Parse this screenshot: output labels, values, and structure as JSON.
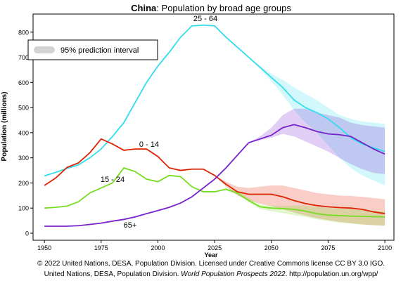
{
  "chart_data": {
    "type": "line",
    "title_country": "China",
    "title_rest": ": Population by broad age groups",
    "xlabel": "Year",
    "ylabel": "Population (millions)",
    "legend_label": "95% prediction interval",
    "legend_color": "#d3d3d3",
    "footer_line1": "© 2022 United Nations, DESA, Population Division. Licensed under Creative Commons license CC BY 3.0 IGO.",
    "footer_line2_start": "United Nations, DESA, Population Division. ",
    "footer_line2_italic": "World Population Prospects 2022",
    "footer_line2_end": ". http://population.un.org/wpp/",
    "xlim": [
      1945,
      2104
    ],
    "ylim": [
      -28,
      872
    ],
    "xticks": [
      1950,
      1975,
      2000,
      2025,
      2050,
      2075,
      2100
    ],
    "yticks": [
      0,
      100,
      200,
      300,
      400,
      500,
      600,
      700,
      800
    ],
    "x": [
      1950,
      1955,
      1960,
      1965,
      1970,
      1975,
      1980,
      1985,
      1990,
      1995,
      2000,
      2005,
      2010,
      2015,
      2020,
      2025,
      2030,
      2035,
      2040,
      2045,
      2050,
      2055,
      2060,
      2065,
      2070,
      2075,
      2080,
      2085,
      2090,
      2095,
      2100
    ],
    "series": [
      {
        "name": "25 - 64",
        "color": "#33dded",
        "values": [
          228,
          242,
          258,
          272,
          300,
          335,
          385,
          440,
          520,
          600,
          665,
          720,
          780,
          825,
          828,
          825,
          780,
          740,
          700,
          660,
          620,
          580,
          530,
          500,
          480,
          455,
          420,
          380,
          355,
          340,
          325
        ],
        "interval": {
          "x": [
            2025,
            2030,
            2035,
            2040,
            2045,
            2050,
            2055,
            2060,
            2065,
            2070,
            2075,
            2080,
            2085,
            2090,
            2095,
            2100
          ],
          "lower": [
            825,
            780,
            740,
            700,
            655,
            605,
            550,
            490,
            440,
            400,
            350,
            300,
            260,
            230,
            210,
            190
          ],
          "upper": [
            825,
            780,
            740,
            700,
            665,
            635,
            610,
            580,
            555,
            530,
            500,
            470,
            455,
            445,
            440,
            435
          ]
        }
      },
      {
        "name": "0 - 14",
        "color": "#dd2200",
        "values": [
          190,
          220,
          262,
          280,
          320,
          375,
          355,
          330,
          335,
          335,
          305,
          260,
          250,
          255,
          255,
          230,
          195,
          165,
          155,
          155,
          155,
          145,
          130,
          118,
          110,
          105,
          102,
          100,
          95,
          85,
          78
        ],
        "interval": {
          "x": [
            2025,
            2030,
            2035,
            2040,
            2045,
            2050,
            2055,
            2060,
            2065,
            2070,
            2075,
            2080,
            2085,
            2090,
            2095,
            2100
          ],
          "lower": [
            230,
            185,
            150,
            130,
            118,
            108,
            95,
            82,
            70,
            60,
            52,
            45,
            40,
            35,
            32,
            30
          ],
          "upper": [
            230,
            205,
            185,
            180,
            185,
            190,
            190,
            180,
            170,
            160,
            155,
            150,
            148,
            145,
            140,
            135
          ]
        }
      },
      {
        "name": "15 - 24",
        "color": "#77dd22",
        "values": [
          100,
          103,
          108,
          125,
          160,
          180,
          200,
          260,
          245,
          215,
          205,
          230,
          225,
          185,
          165,
          165,
          175,
          160,
          130,
          105,
          100,
          98,
          95,
          88,
          78,
          72,
          70,
          68,
          67,
          66,
          65
        ],
        "interval": {
          "x": [
            2025,
            2030,
            2035,
            2040,
            2045,
            2050,
            2055,
            2060,
            2065,
            2070,
            2075,
            2080,
            2085,
            2090,
            2095,
            2100
          ],
          "lower": [
            165,
            170,
            155,
            125,
            95,
            88,
            80,
            72,
            65,
            55,
            48,
            42,
            38,
            35,
            32,
            30
          ],
          "upper": [
            165,
            180,
            170,
            140,
            115,
            110,
            108,
            110,
            110,
            105,
            100,
            98,
            95,
            92,
            90,
            88
          ]
        }
      },
      {
        "name": "65+",
        "color": "#7722cc",
        "values": [
          28,
          28,
          28,
          30,
          35,
          40,
          48,
          55,
          65,
          78,
          90,
          103,
          120,
          145,
          180,
          215,
          260,
          310,
          360,
          375,
          390,
          420,
          432,
          420,
          405,
          395,
          392,
          385,
          360,
          335,
          315
        ],
        "interval": {
          "x": [
            2025,
            2030,
            2035,
            2040,
            2045,
            2050,
            2055,
            2060,
            2065,
            2070,
            2075,
            2080,
            2085,
            2090,
            2095,
            2100
          ],
          "lower": [
            215,
            260,
            310,
            360,
            370,
            380,
            395,
            385,
            365,
            345,
            325,
            300,
            275,
            255,
            240,
            235
          ],
          "upper": [
            215,
            260,
            310,
            360,
            385,
            420,
            470,
            495,
            495,
            480,
            470,
            460,
            440,
            430,
            425,
            420
          ]
        }
      }
    ]
  }
}
